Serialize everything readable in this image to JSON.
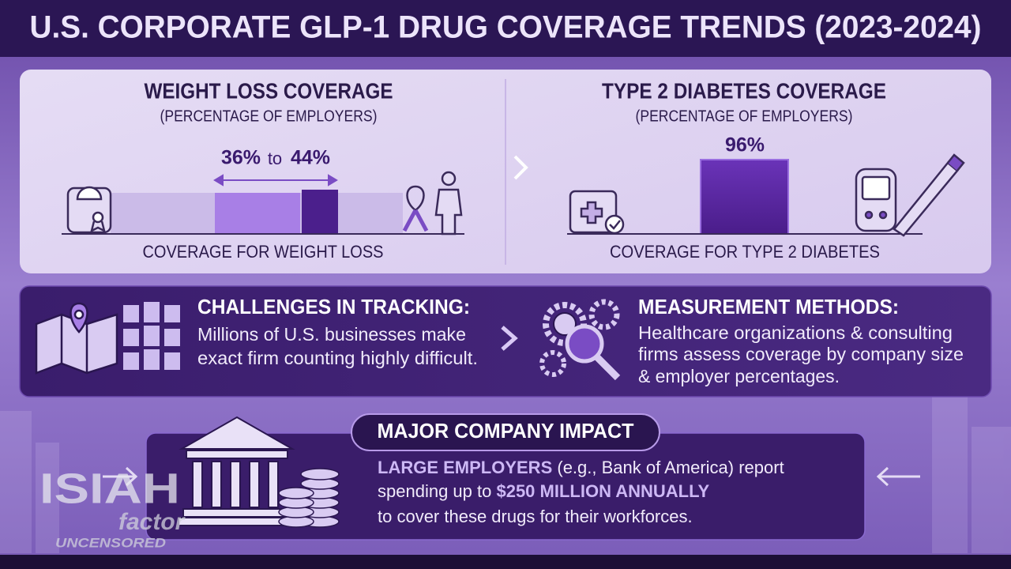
{
  "title": "U.S. CORPORATE GLP-1 DRUG COVERAGE TRENDS (2023-2024)",
  "weight_loss": {
    "title": "WEIGHT LOSS COVERAGE",
    "subtitle": "(PERCENTAGE OF EMPLOYERS)",
    "range_low": "36%",
    "range_word": "to",
    "range_high": "44%",
    "caption": "COVERAGE FOR WEIGHT LOSS"
  },
  "diabetes": {
    "title": "TYPE 2 DIABETES COVERAGE",
    "subtitle": "(PERCENTAGE OF EMPLOYERS)",
    "value": "96%",
    "caption": "COVERAGE FOR TYPE 2 DIABETES"
  },
  "challenges": {
    "title": "CHALLENGES IN TRACKING:",
    "lines": [
      "Millions of U.S. businesses make",
      "exact firm counting highly difficult."
    ]
  },
  "methods": {
    "title": "MEASUREMENT METHODS:",
    "lines": [
      "Healthcare organizations & consulting",
      "firms assess coverage by company size",
      "& employer percentages."
    ]
  },
  "impact": {
    "title": "MAJOR COMPANY IMPACT",
    "line1_bold": "LARGE EMPLOYERS",
    "line1_rest": " (e.g., Bank of America) report",
    "line2_start": "spending up to ",
    "line2_bold": "$250 MILLION ANNUALLY",
    "line3": "to cover these drugs for their workforces."
  },
  "watermark": {
    "name": "ISIAH",
    "sub": "factor",
    "tag": "UNCENSORED"
  }
}
